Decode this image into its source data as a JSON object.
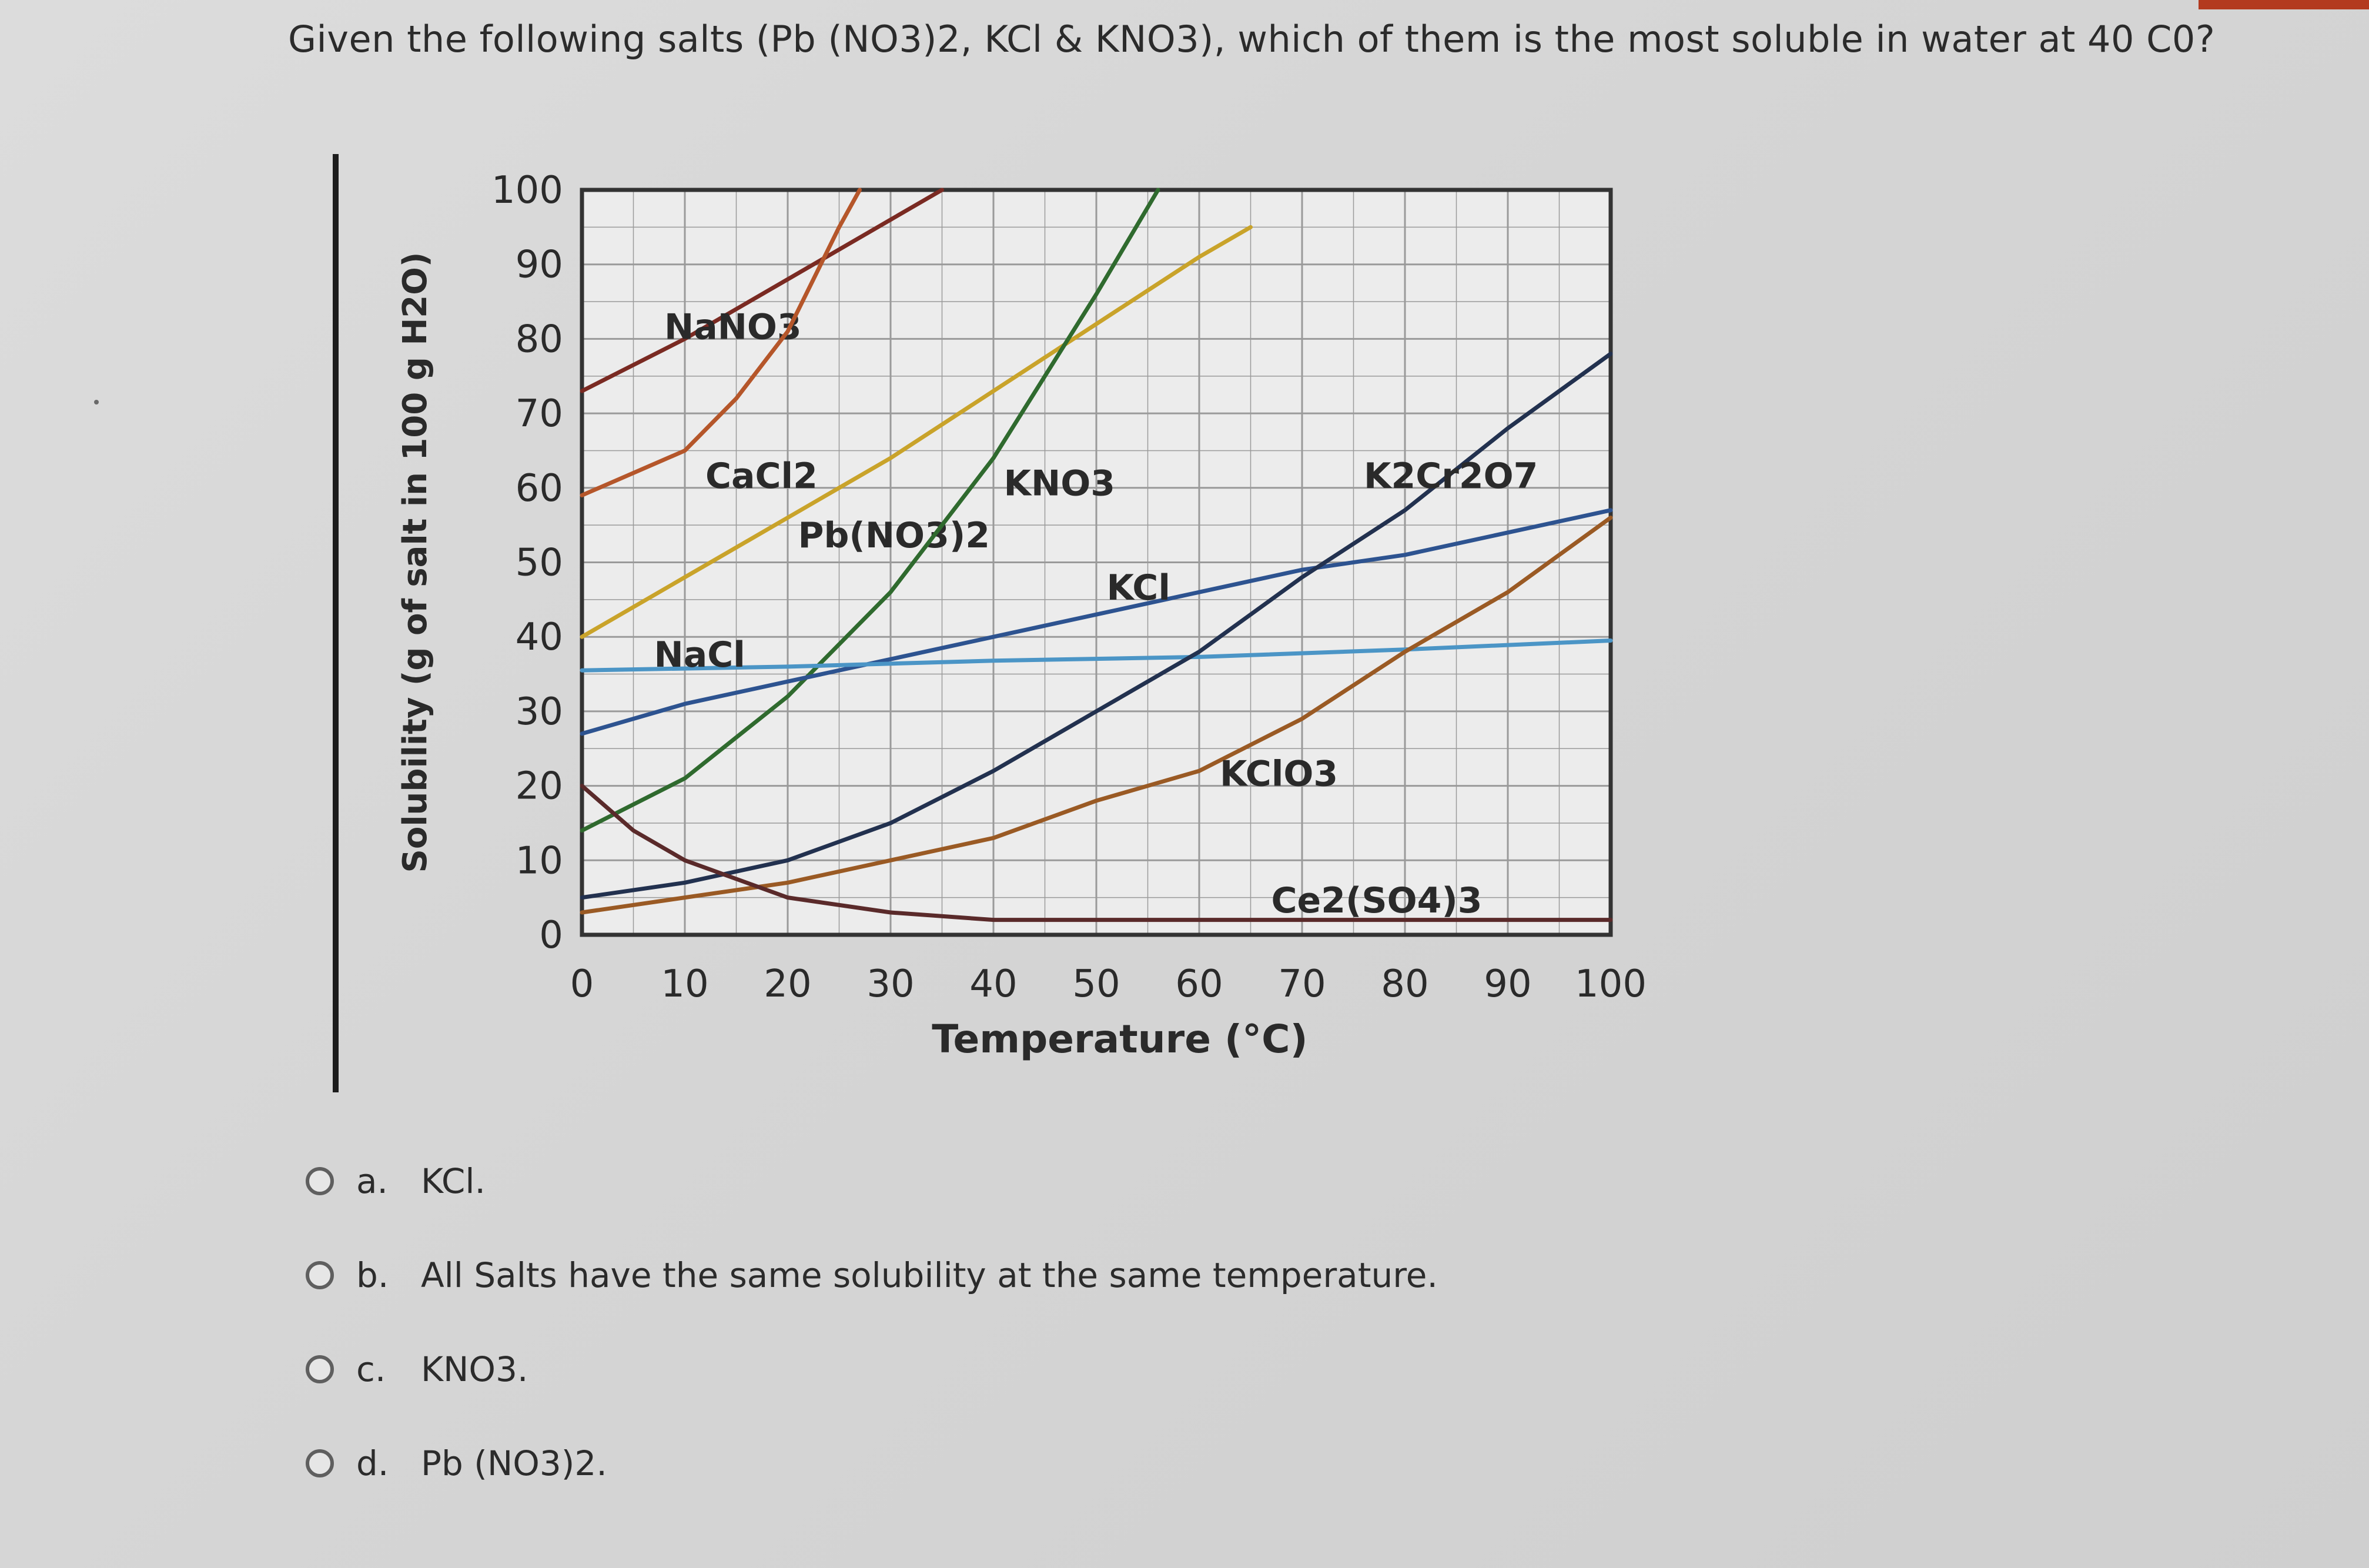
{
  "question": {
    "text": "Given the following salts (Pb (NO3)2, KCl & KNO3), which of them is the most soluble in water at 40 C0?"
  },
  "options": [
    {
      "letter": "a.",
      "text": "KCl."
    },
    {
      "letter": "b.",
      "text": "All Salts have the same solubility at the same temperature."
    },
    {
      "letter": "c.",
      "text": "KNO3."
    },
    {
      "letter": "d.",
      "text": "Pb (NO3)2."
    }
  ],
  "chart_data": {
    "type": "line",
    "title": "",
    "xlabel": "Temperature (°C)",
    "ylabel": "Solubility (g of salt in 100 g H2O)",
    "xlim": [
      0,
      100
    ],
    "ylim": [
      0,
      100
    ],
    "x_ticks": [
      "0",
      "10",
      "20",
      "30",
      "40",
      "50",
      "60",
      "70",
      "80",
      "90",
      "100"
    ],
    "y_ticks": [
      "0",
      "10",
      "20",
      "30",
      "40",
      "50",
      "60",
      "70",
      "80",
      "90",
      "100"
    ],
    "grid": true,
    "series": [
      {
        "name": "NaNO3",
        "color": "#7a2a22",
        "label_at": [
          8,
          80
        ],
        "x": [
          0,
          10,
          20,
          30,
          35
        ],
        "y": [
          73,
          80,
          88,
          96,
          100
        ]
      },
      {
        "name": "CaCl2",
        "color": "#b5562a",
        "label_at": [
          12,
          60
        ],
        "x": [
          0,
          10,
          15,
          20,
          25,
          27
        ],
        "y": [
          59,
          65,
          72,
          81,
          95,
          100
        ]
      },
      {
        "name": "Pb(NO3)2",
        "color": "#c9a32a",
        "label_at": [
          21,
          52
        ],
        "x": [
          0,
          10,
          20,
          30,
          40,
          50,
          60,
          65
        ],
        "y": [
          40,
          48,
          56,
          64,
          73,
          82,
          91,
          95
        ]
      },
      {
        "name": "KNO3",
        "color": "#2f6a2e",
        "label_at": [
          41,
          59
        ],
        "x": [
          0,
          10,
          20,
          30,
          40,
          50,
          56
        ],
        "y": [
          14,
          21,
          32,
          46,
          64,
          86,
          100
        ]
      },
      {
        "name": "KCl",
        "color": "#2d5390",
        "label_at": [
          51,
          45
        ],
        "x": [
          0,
          10,
          20,
          30,
          40,
          50,
          60,
          70,
          80,
          90,
          100
        ],
        "y": [
          27,
          31,
          34,
          37,
          40,
          43,
          46,
          49,
          51,
          54,
          57
        ]
      },
      {
        "name": "NaCl",
        "color": "#4b95c6",
        "label_at": [
          7,
          36
        ],
        "x": [
          0,
          20,
          40,
          60,
          80,
          100
        ],
        "y": [
          35.5,
          36,
          36.8,
          37.3,
          38.3,
          39.5
        ]
      },
      {
        "name": "K2Cr2O7",
        "color": "#22314f",
        "label_at": [
          76,
          60
        ],
        "x": [
          0,
          10,
          20,
          30,
          40,
          50,
          60,
          70,
          80,
          90,
          100
        ],
        "y": [
          5,
          7,
          10,
          15,
          22,
          30,
          38,
          48,
          57,
          68,
          78
        ]
      },
      {
        "name": "KClO3",
        "color": "#9a5a24",
        "label_at": [
          62,
          20
        ],
        "x": [
          0,
          10,
          20,
          30,
          40,
          50,
          60,
          70,
          80,
          90,
          100
        ],
        "y": [
          3,
          5,
          7,
          10,
          13,
          18,
          22,
          29,
          38,
          46,
          56
        ]
      },
      {
        "name": "Ce2(SO4)3",
        "color": "#5a2a2a",
        "label_at": [
          67,
          3
        ],
        "x": [
          0,
          5,
          10,
          20,
          30,
          40,
          60,
          100
        ],
        "y": [
          20,
          14,
          10,
          5,
          3,
          2,
          2,
          2
        ]
      }
    ]
  }
}
